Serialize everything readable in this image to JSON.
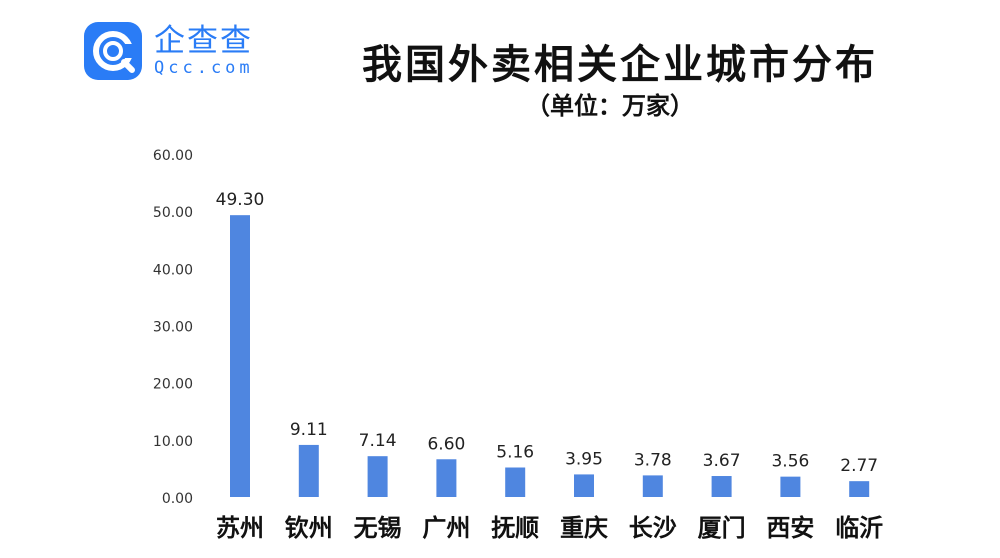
{
  "logo": {
    "name_cn": "企查查",
    "name_en": "Qcc.com",
    "color": "#2a7cf6"
  },
  "chart_data": {
    "type": "bar",
    "title": "我国外卖相关企业城市分布",
    "subtitle": "（单位：万家）",
    "categories": [
      "苏州",
      "钦州",
      "无锡",
      "广州",
      "抚顺",
      "重庆",
      "长沙",
      "厦门",
      "西安",
      "临沂"
    ],
    "values": [
      49.3,
      9.11,
      7.14,
      6.6,
      5.16,
      3.95,
      3.78,
      3.67,
      3.56,
      2.77
    ],
    "value_labels": [
      "49.30",
      "9.11",
      "7.14",
      "6.60",
      "5.16",
      "3.95",
      "3.78",
      "3.67",
      "3.56",
      "2.77"
    ],
    "y_ticks": [
      "0.00",
      "10.00",
      "20.00",
      "30.00",
      "40.00",
      "50.00",
      "60.00"
    ],
    "ylim": [
      0,
      60
    ],
    "bar_color": "#4f86e0",
    "grid": false,
    "legend": "none"
  }
}
